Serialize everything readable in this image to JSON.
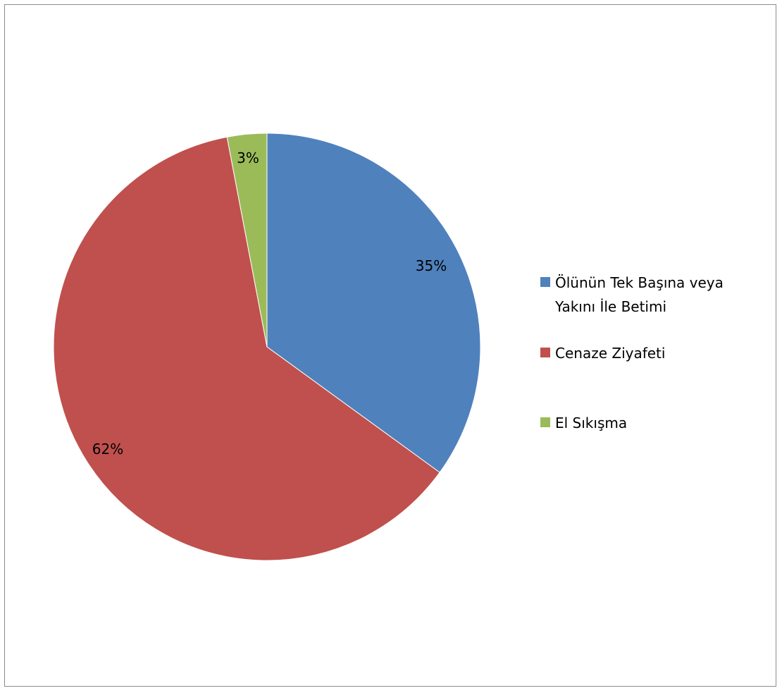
{
  "chart_data": {
    "type": "pie",
    "title": "",
    "slices": [
      {
        "name": "Ölünün Tek Başına veya Yakını İle Betimi",
        "value": 35,
        "label": "35%",
        "color": "#4F81BD"
      },
      {
        "name": "Cenaze Ziyafeti",
        "value": 62,
        "label": "62%",
        "color": "#C0504D"
      },
      {
        "name": "El Sıkışma",
        "value": 3,
        "label": "3%",
        "color": "#9BBB59"
      }
    ],
    "start_angle": "12 o'clock",
    "direction": "clockwise",
    "legend_position": "right"
  }
}
